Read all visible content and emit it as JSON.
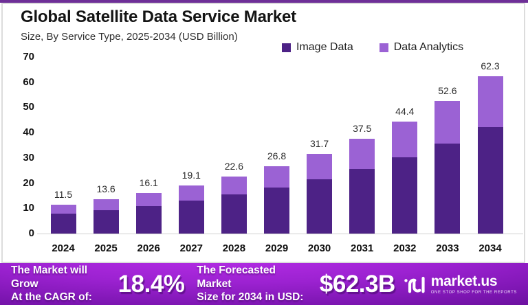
{
  "header": {
    "title": "Global Satellite Data Service Market",
    "subtitle": "Size, By Service Type, 2025-2034 (USD Billion)"
  },
  "chart_data": {
    "type": "bar",
    "stacked": true,
    "title": "Global Satellite Data Service Market",
    "subtitle": "Size, By Service Type, 2025-2034 (USD Billion)",
    "unit": "USD Billion",
    "categories": [
      "2024",
      "2025",
      "2026",
      "2027",
      "2028",
      "2029",
      "2030",
      "2031",
      "2032",
      "2033",
      "2034"
    ],
    "series": [
      {
        "name": "Image Data",
        "color": "#4D2286",
        "values": [
          8.0,
          9.3,
          11.0,
          13.0,
          15.4,
          18.3,
          21.6,
          25.5,
          30.2,
          35.8,
          42.3
        ]
      },
      {
        "name": "Data Analytics",
        "color": "#9B62D4",
        "values": [
          3.5,
          4.3,
          5.1,
          6.1,
          7.2,
          8.5,
          10.1,
          12.0,
          14.2,
          16.8,
          20.0
        ]
      }
    ],
    "totals": [
      "11.5",
      "13.6",
      "16.1",
      "19.1",
      "22.6",
      "26.8",
      "31.7",
      "37.5",
      "44.4",
      "52.6",
      "62.3"
    ],
    "ylim": [
      0,
      70
    ],
    "yticks": [
      0,
      10,
      20,
      30,
      40,
      50,
      60,
      70
    ],
    "grid": false,
    "legend_position": "top-right"
  },
  "footer": {
    "cagr_label_line1": "The Market will Grow",
    "cagr_label_line2": "At the CAGR of:",
    "cagr_value": "18.4%",
    "forecast_label_line1": "The Forecasted Market",
    "forecast_label_line2": "Size for 2034 in USD:",
    "forecast_value": "$62.3B",
    "brand": {
      "name": "market.us",
      "tagline": "ONE STOP SHOP FOR THE REPORTS"
    }
  },
  "colors": {
    "image_data": "#4D2286",
    "data_analytics": "#9B62D4",
    "banner_center": "#9C22D1",
    "banner_edge": "#570D88",
    "top_strip": "#6E2F97"
  }
}
